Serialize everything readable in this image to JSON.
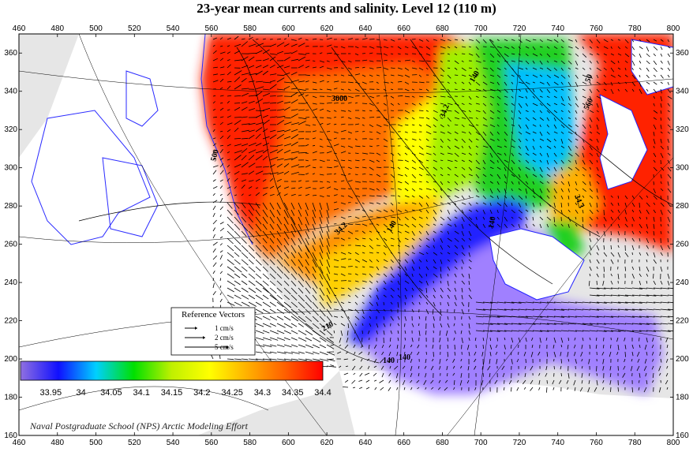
{
  "chart_data": {
    "type": "heatmap",
    "title": "23-year mean currents and salinity. Level  12 (110 m)",
    "x_ticks": [
      "460",
      "480",
      "500",
      "520",
      "540",
      "560",
      "580",
      "600",
      "620",
      "640",
      "660",
      "680",
      "700",
      "720",
      "740",
      "760",
      "780",
      "800"
    ],
    "y_ticks": [
      "160",
      "180",
      "200",
      "220",
      "240",
      "260",
      "280",
      "300",
      "320",
      "340",
      "360"
    ],
    "xlim": [
      460,
      800
    ],
    "ylim": [
      160,
      370
    ],
    "grid": false,
    "colorbar": {
      "ticks": [
        "33.95",
        "34",
        "34.05",
        "34.1",
        "34.15",
        "34.2",
        "34.25",
        "34.3",
        "34.35",
        "34.4"
      ],
      "range": [
        33.9,
        34.4
      ],
      "colors": [
        "#9070e0",
        "#1010ff",
        "#00d0ff",
        "#00e000",
        "#c0f000",
        "#ffff00",
        "#ffb000",
        "#ff6000",
        "#ff0000"
      ]
    },
    "reference_vectors": {
      "title": "Reference Vectors",
      "items": [
        {
          "label": "1 cm/s",
          "speed": 1
        },
        {
          "label": "2 cm/s",
          "speed": 2
        },
        {
          "label": "5 cm/s",
          "speed": 5
        }
      ]
    },
    "contour_labels": [
      "3000",
      "34.2",
      "140",
      "34.2",
      "140",
      "34.3",
      "140",
      "140",
      "210",
      "140",
      "50",
      "560",
      "500"
    ],
    "credit": "Naval Postgraduate School (NPS) Arctic Modeling Effort"
  }
}
